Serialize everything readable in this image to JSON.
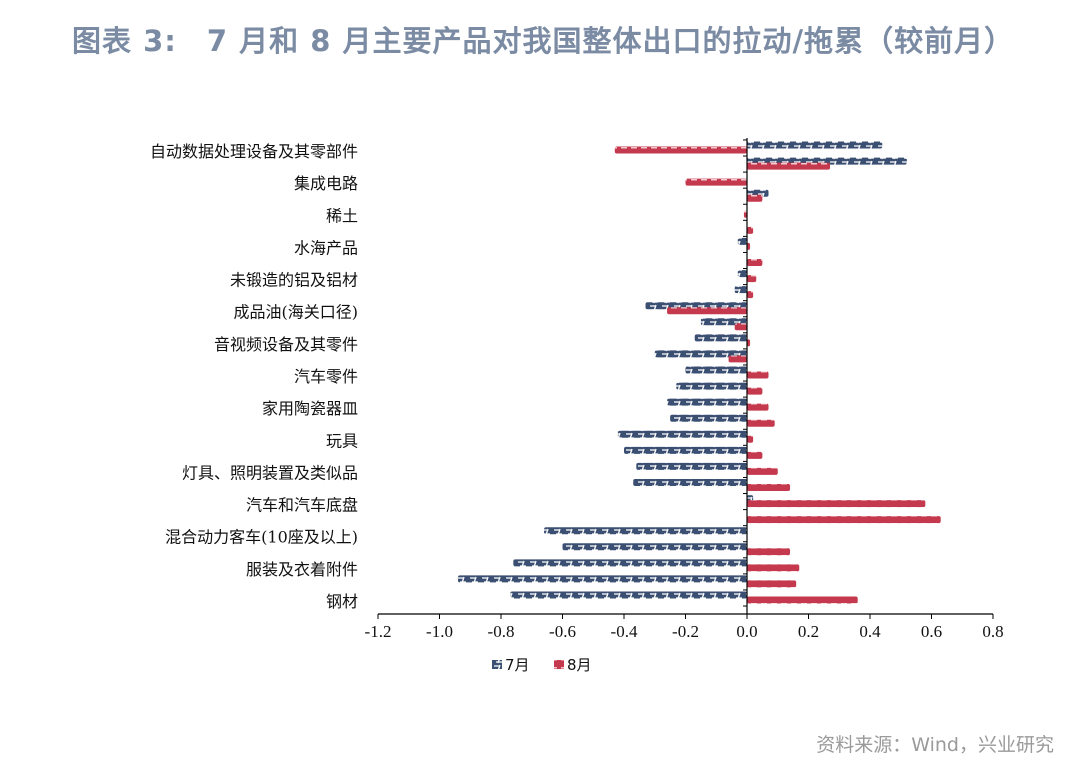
{
  "title": "图表 3:　7 月和 8 月主要产品对我国整体出口的拉动/拖累（较前月）",
  "source": "资料来源：Wind，兴业研究",
  "chart_data": {
    "type": "bar",
    "orientation": "horizontal",
    "title": "",
    "xlabel": "",
    "ylabel": "",
    "xlim": [
      -1.2,
      0.8
    ],
    "xticks": [
      "-1.2",
      "-1.0",
      "-0.8",
      "-0.6",
      "-0.4",
      "-0.2",
      "0.0",
      "0.2",
      "0.4",
      "0.6",
      "0.8"
    ],
    "grid": false,
    "legend": "bottom",
    "colors": {
      "7月": "#3b4f72",
      "8月": "#c4394d"
    },
    "categories": [
      "自动数据处理设备及其零部件",
      "",
      "集成电路",
      "",
      "稀土",
      "",
      "水海产品",
      "",
      "未锻造的铝及铝材",
      "",
      "成品油(海关口径)",
      "",
      "音视频设备及其零件",
      "",
      "汽车零件",
      "",
      "家用陶瓷器皿",
      "",
      "玩具",
      "",
      "灯具、照明装置及类似品",
      "",
      "汽车和汽车底盘",
      "",
      "混合动力客车(10座及以上)",
      "",
      "服装及衣着附件",
      "",
      "钢材"
    ],
    "series": [
      {
        "name": "7月",
        "values": [
          0.44,
          0.52,
          0.0,
          0.07,
          0.0,
          0.0,
          -0.03,
          0.0,
          -0.03,
          -0.04,
          -0.33,
          -0.15,
          -0.17,
          -0.3,
          -0.2,
          -0.23,
          -0.26,
          -0.25,
          -0.42,
          -0.4,
          -0.36,
          -0.37,
          0.02,
          0.0,
          -0.66,
          -0.6,
          -0.76,
          -0.94,
          -0.77
        ]
      },
      {
        "name": "8月",
        "values": [
          -0.43,
          0.27,
          -0.2,
          0.05,
          -0.01,
          0.02,
          0.01,
          0.05,
          0.03,
          0.02,
          -0.26,
          -0.04,
          0.01,
          -0.06,
          0.07,
          0.05,
          0.07,
          0.09,
          0.02,
          0.05,
          0.1,
          0.14,
          0.58,
          0.63,
          0.0,
          0.14,
          0.17,
          0.16,
          0.36
        ]
      }
    ]
  }
}
